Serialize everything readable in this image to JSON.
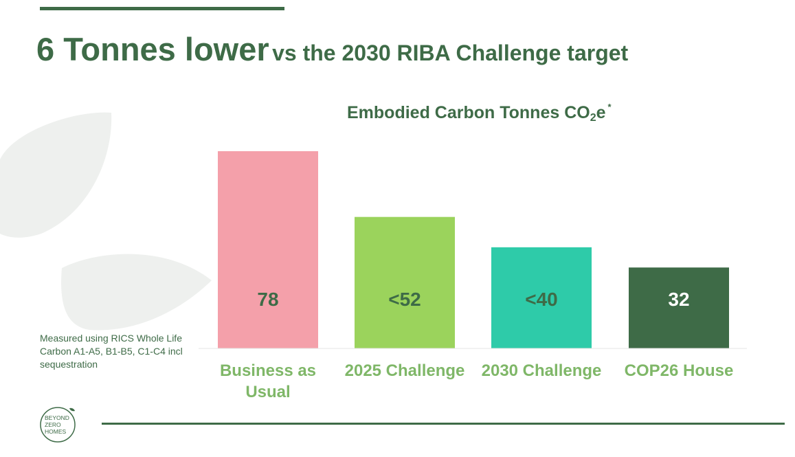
{
  "slide": {
    "title_big": "6 Tonnes lower",
    "title_small": "vs the 2030 RIBA Challenge target",
    "chart_title_main": "Embodied Carbon Tonnes CO",
    "chart_title_sub": "2",
    "chart_title_end": "e",
    "chart_title_mark": "*",
    "note": "Measured using RICS Whole Life Carbon A1-A5, B1-B5, C1-C4 incl sequestration",
    "logo": {
      "line1": "BEYOND",
      "line2": "ZERO",
      "line3": "HOMES"
    }
  },
  "colors": {
    "brand_green": "#3e6b47",
    "category_green": "#7fb768",
    "leaf_grey": "#eef0ee"
  },
  "chart_data": {
    "type": "bar",
    "title": "Embodied Carbon Tonnes CO2e *",
    "categories": [
      "Business as Usual",
      "2025 Challenge",
      "2030 Challenge",
      "COP26 House"
    ],
    "values": [
      78,
      52,
      40,
      32
    ],
    "labels": [
      "78",
      "<52",
      "<40",
      "32"
    ],
    "bar_colors": [
      "#f4a0aa",
      "#9bd35c",
      "#2ecba9",
      "#3e6b47"
    ],
    "label_colors": [
      "#3e6b47",
      "#3e6b47",
      "#3e6b47",
      "#ffffff"
    ],
    "ylim": [
      0,
      78
    ],
    "grid": false,
    "legend": "none"
  }
}
